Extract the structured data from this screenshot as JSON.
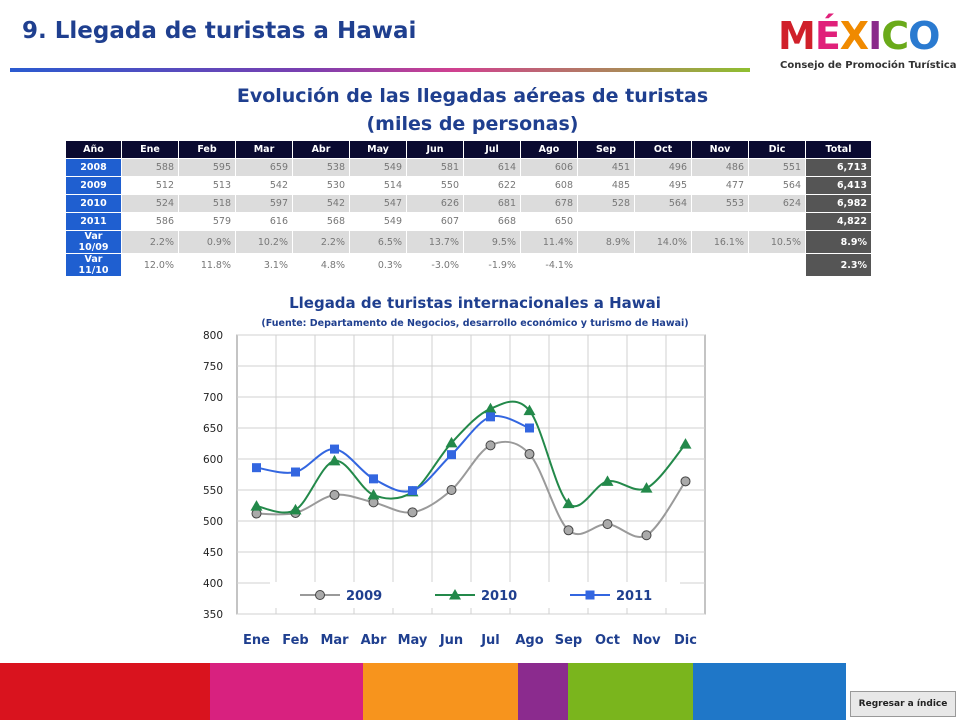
{
  "header": {
    "title": "9. Llegada de turistas a Hawai",
    "logo": "MÉXICO",
    "logo_subtitle": "Consejo de Promoción Turística"
  },
  "table": {
    "title": "Evolución de las llegadas aéreas de turistas",
    "subtitle": "(miles de personas)",
    "columns": [
      "Año",
      "Ene",
      "Feb",
      "Mar",
      "Abr",
      "May",
      "Jun",
      "Jul",
      "Ago",
      "Sep",
      "Oct",
      "Nov",
      "Dic",
      "Total"
    ],
    "rows": [
      [
        "2008",
        "588",
        "595",
        "659",
        "538",
        "549",
        "581",
        "614",
        "606",
        "451",
        "496",
        "486",
        "551",
        "6,713"
      ],
      [
        "2009",
        "512",
        "513",
        "542",
        "530",
        "514",
        "550",
        "622",
        "608",
        "485",
        "495",
        "477",
        "564",
        "6,413"
      ],
      [
        "2010",
        "524",
        "518",
        "597",
        "542",
        "547",
        "626",
        "681",
        "678",
        "528",
        "564",
        "553",
        "624",
        "6,982"
      ],
      [
        "2011",
        "586",
        "579",
        "616",
        "568",
        "549",
        "607",
        "668",
        "650",
        null,
        null,
        null,
        null,
        "4,822"
      ],
      [
        "Var 10/09",
        "2.2%",
        "0.9%",
        "10.2%",
        "2.2%",
        "6.5%",
        "13.7%",
        "9.5%",
        "11.4%",
        "8.9%",
        "14.0%",
        "16.1%",
        "10.5%",
        "8.9%"
      ],
      [
        "Var 11/10",
        "12.0%",
        "11.8%",
        "3.1%",
        "4.8%",
        "0.3%",
        "-3.0%",
        "-1.9%",
        "-4.1%",
        null,
        null,
        null,
        null,
        "2.3%"
      ]
    ]
  },
  "chart_data": {
    "type": "line",
    "title": "Llegada de turistas internacionales a Hawai",
    "subtitle": "(Fuente: Departamento de Negocios, desarrollo económico y turismo de Hawai)",
    "categories": [
      "Ene",
      "Feb",
      "Mar",
      "Abr",
      "May",
      "Jun",
      "Jul",
      "Ago",
      "Sep",
      "Oct",
      "Nov",
      "Dic"
    ],
    "series": [
      {
        "name": "2009",
        "color": "#9a9a9a",
        "marker": "circle",
        "values": [
          512,
          513,
          542,
          530,
          514,
          550,
          622,
          608,
          485,
          495,
          477,
          564
        ]
      },
      {
        "name": "2010",
        "color": "#23894a",
        "marker": "triangle",
        "values": [
          524,
          518,
          597,
          542,
          547,
          626,
          681,
          678,
          528,
          564,
          553,
          624
        ]
      },
      {
        "name": "2011",
        "color": "#3366e0",
        "marker": "square",
        "values": [
          586,
          579,
          616,
          568,
          549,
          607,
          668,
          650,
          null,
          null,
          null,
          null
        ]
      }
    ],
    "ylim": [
      350,
      800
    ],
    "yticks": [
      350,
      400,
      450,
      500,
      550,
      600,
      650,
      700,
      750,
      800
    ],
    "grid": true,
    "legend": "bottom"
  },
  "footer": {
    "button": "Regresar a índice"
  }
}
